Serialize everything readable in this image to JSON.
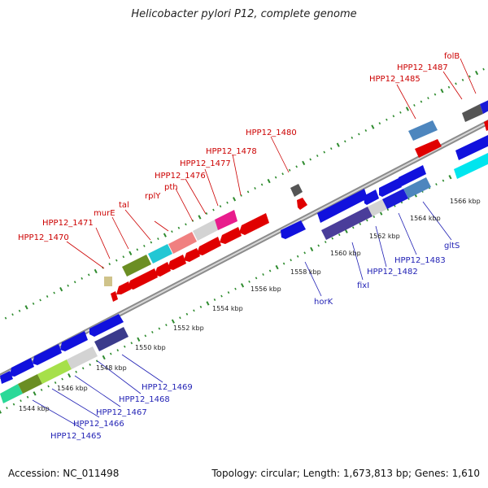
{
  "title": "Helicobacter pylori P12, complete genome",
  "footer": {
    "accession": "Accession: NC_011498",
    "summary": "Topology: circular; Length: 1,673,813 bp; Genes: 1,610"
  },
  "colors": {
    "backbone": "#9a9a9a",
    "tick": "#2e8b2e",
    "label_top": "#cc0000",
    "label_bottom": "#1f1fb4"
  },
  "kbp_labels": [
    "1544 kbp",
    "1546 kbp",
    "1548 kbp",
    "1550 kbp",
    "1552 kbp",
    "1554 kbp",
    "1556 kbp",
    "1558 kbp",
    "1560 kbp",
    "1562 kbp",
    "1564 kbp",
    "1566 kbp"
  ],
  "top_labels": [
    "HPP12_1470",
    "HPP12_1471",
    "murE",
    "tal",
    "rplY",
    "pth",
    "HPP12_1476",
    "HPP12_1477",
    "HPP12_1478",
    "HPP12_1480",
    "HPP12_1485",
    "HPP12_1487",
    "folB"
  ],
  "bottom_labels": [
    "HPP12_1465",
    "HPP12_1466",
    "HPP12_1467",
    "HPP12_1468",
    "HPP12_1469",
    "horK",
    "fixI",
    "HPP12_1482",
    "HPP12_1483",
    "gltS"
  ]
}
